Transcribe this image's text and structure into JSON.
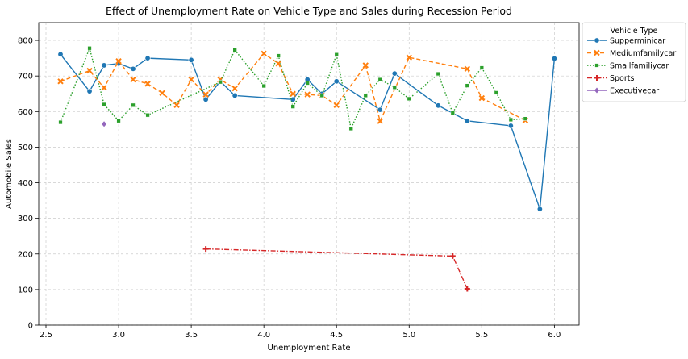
{
  "chart_data": {
    "type": "line",
    "title": "Effect of Unemployment Rate on Vehicle Type and Sales during Recession Period",
    "xlabel": "Unemployment Rate",
    "ylabel": "Automobile Sales",
    "xlim": [
      2.45,
      6.17
    ],
    "ylim": [
      0,
      850
    ],
    "xticks": [
      2.5,
      3.0,
      3.5,
      4.0,
      4.5,
      5.0,
      5.5,
      6.0
    ],
    "xtick_labels": [
      "2.5",
      "3.0",
      "3.5",
      "4.0",
      "4.5",
      "5.0",
      "5.5",
      "6.0"
    ],
    "yticks": [
      0,
      100,
      200,
      300,
      400,
      500,
      600,
      700,
      800
    ],
    "ytick_labels": [
      "0",
      "100",
      "200",
      "300",
      "400",
      "500",
      "600",
      "700",
      "800"
    ],
    "grid": true,
    "legend_title": "Vehicle Type",
    "legend_position": "outside-top-right",
    "series": [
      {
        "name": "Supperminicar",
        "color": "#1f77b4",
        "dash": "solid",
        "marker": "circle",
        "x": [
          2.6,
          2.8,
          2.9,
          3.0,
          3.1,
          3.2,
          3.5,
          3.6,
          3.7,
          3.8,
          4.2,
          4.3,
          4.4,
          4.5,
          4.8,
          4.9,
          5.2,
          5.4,
          5.7,
          5.9,
          6.0
        ],
        "y": [
          761,
          657,
          730,
          735,
          720,
          750,
          745,
          634,
          685,
          645,
          634,
          690,
          650,
          685,
          605,
          707,
          617,
          574,
          560,
          326,
          749
        ]
      },
      {
        "name": "Mediumfamilycar",
        "color": "#ff7f0e",
        "dash": "dashed",
        "marker": "x",
        "x": [
          2.6,
          2.8,
          2.9,
          3.0,
          3.1,
          3.2,
          3.3,
          3.4,
          3.5,
          3.6,
          3.7,
          3.8,
          4.0,
          4.1,
          4.2,
          4.3,
          4.4,
          4.5,
          4.7,
          4.8,
          5.0,
          5.4,
          5.5,
          5.8
        ],
        "y": [
          685,
          715,
          667,
          742,
          690,
          678,
          652,
          618,
          690,
          648,
          690,
          665,
          763,
          735,
          650,
          648,
          645,
          618,
          730,
          573,
          752,
          720,
          638,
          575
        ]
      },
      {
        "name": "Smallfamiliycar",
        "color": "#2ca02c",
        "dash": "dotted",
        "marker": "square",
        "x": [
          2.6,
          2.8,
          2.9,
          3.0,
          3.1,
          3.2,
          3.7,
          3.8,
          4.0,
          4.1,
          4.2,
          4.3,
          4.4,
          4.5,
          4.6,
          4.7,
          4.8,
          4.9,
          5.0,
          5.2,
          5.3,
          5.4,
          5.5,
          5.6,
          5.7,
          5.8
        ],
        "y": [
          570,
          778,
          620,
          574,
          618,
          590,
          683,
          773,
          672,
          757,
          614,
          680,
          645,
          760,
          552,
          645,
          690,
          668,
          636,
          706,
          596,
          673,
          723,
          653,
          577,
          580
        ]
      },
      {
        "name": "Sports",
        "color": "#d62728",
        "dash": "dashdot",
        "marker": "plus",
        "x": [
          3.6,
          5.3,
          5.4
        ],
        "y": [
          214,
          194,
          102
        ]
      },
      {
        "name": "Executivecar",
        "color": "#9467bd",
        "dash": "solid",
        "marker": "diamond",
        "x": [
          2.9
        ],
        "y": [
          565
        ]
      }
    ]
  }
}
